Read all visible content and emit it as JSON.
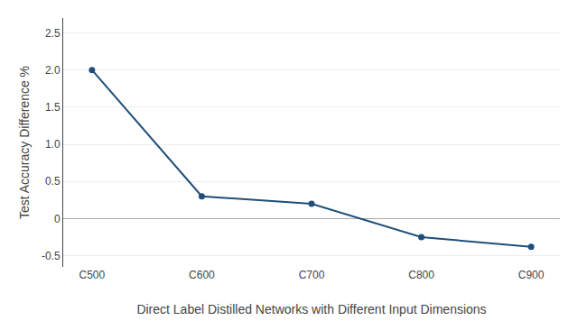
{
  "chart_data": {
    "type": "line",
    "categories": [
      "C500",
      "C600",
      "C700",
      "C800",
      "C900"
    ],
    "values": [
      2.0,
      0.3,
      0.2,
      -0.25,
      -0.38
    ],
    "color": "#1F4E79",
    "marker": "circle",
    "xlabel": "Direct Label Distilled Networks with Different Input Dimensions",
    "ylabel": "Test Accuracy Difference %",
    "ylim": [
      -0.65,
      2.7
    ],
    "yticks": [
      -0.5,
      0,
      0.5,
      {
        "value": 1.0,
        "label": "1.0"
      },
      1.5,
      {
        "value": 2.0,
        "label": "2.0"
      },
      2.5
    ],
    "grid": true
  }
}
